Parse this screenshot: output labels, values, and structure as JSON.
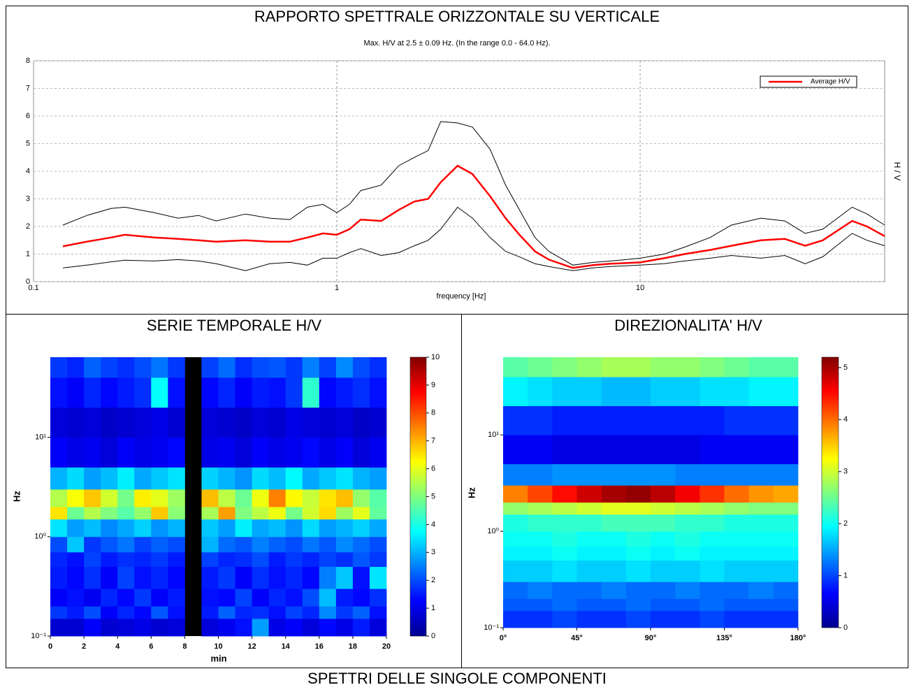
{
  "chart_data": [
    {
      "type": "line",
      "title": "RAPPORTO SPETTRALE ORIZZONTALE SU VERTICALE",
      "subtitle": "Max. H/V at 2.5 ± 0.09 Hz. (In the range 0.0 - 64.0 Hz).",
      "xlabel": "frequency [Hz]",
      "ylabel": "H / V",
      "xlog": true,
      "grid": true,
      "legend": "upper-right",
      "xlim": [
        0.1,
        64
      ],
      "xticks": [
        0.1,
        1,
        10
      ],
      "ylim": [
        0,
        8
      ],
      "yticks": [
        0,
        1,
        2,
        3,
        4,
        5,
        6,
        7,
        8
      ],
      "x": [
        0.125,
        0.15,
        0.18,
        0.2,
        0.25,
        0.3,
        0.35,
        0.4,
        0.5,
        0.6,
        0.7,
        0.8,
        0.9,
        1,
        1.1,
        1.2,
        1.4,
        1.6,
        1.8,
        2,
        2.2,
        2.5,
        2.8,
        3.2,
        3.6,
        4,
        4.5,
        5,
        6,
        7,
        8,
        10,
        12,
        14,
        17,
        20,
        25,
        30,
        35,
        40,
        50,
        56,
        64
      ],
      "series": [
        {
          "color": "#000000",
          "values": [
            2.05,
            2.4,
            2.65,
            2.7,
            2.5,
            2.3,
            2.4,
            2.2,
            2.45,
            2.3,
            2.25,
            2.7,
            2.8,
            2.5,
            2.8,
            3.3,
            3.5,
            4.2,
            4.5,
            4.75,
            5.8,
            5.75,
            5.6,
            4.8,
            3.5,
            2.6,
            1.6,
            1.1,
            0.6,
            0.7,
            0.75,
            0.85,
            1.0,
            1.25,
            1.6,
            2.05,
            2.3,
            2.2,
            1.75,
            1.9,
            2.7,
            2.45,
            2.05
          ]
        },
        {
          "color": "#000000",
          "values": [
            0.5,
            0.6,
            0.72,
            0.78,
            0.75,
            0.8,
            0.75,
            0.65,
            0.4,
            0.65,
            0.7,
            0.6,
            0.85,
            0.85,
            1.05,
            1.2,
            0.95,
            1.05,
            1.3,
            1.5,
            1.9,
            2.7,
            2.3,
            1.6,
            1.1,
            0.9,
            0.65,
            0.55,
            0.4,
            0.5,
            0.55,
            0.6,
            0.65,
            0.75,
            0.85,
            0.95,
            0.85,
            0.95,
            0.65,
            0.9,
            1.75,
            1.5,
            1.3
          ]
        },
        {
          "name": "Average H/V",
          "color": "#ff0000",
          "values": [
            1.28,
            1.45,
            1.6,
            1.7,
            1.6,
            1.55,
            1.5,
            1.45,
            1.5,
            1.45,
            1.45,
            1.6,
            1.75,
            1.7,
            1.9,
            2.25,
            2.2,
            2.6,
            2.9,
            3.0,
            3.6,
            4.2,
            3.9,
            3.1,
            2.3,
            1.7,
            1.1,
            0.8,
            0.5,
            0.6,
            0.65,
            0.7,
            0.85,
            1.0,
            1.15,
            1.3,
            1.5,
            1.55,
            1.3,
            1.5,
            2.2,
            2.0,
            1.65
          ]
        }
      ]
    },
    {
      "type": "heatmap",
      "title": "SERIE TEMPORALE H/V",
      "xlabel": "min",
      "ylabel": "Hz",
      "ylog": true,
      "xlim": [
        0,
        20
      ],
      "xticks": [
        0,
        2,
        4,
        6,
        8,
        10,
        12,
        14,
        16,
        18,
        20
      ],
      "ylim": [
        0.1,
        64
      ],
      "yticks": [
        {
          "value": 0.1,
          "label": "10⁻¹"
        },
        {
          "value": 1,
          "label": "10⁰"
        },
        {
          "value": 10,
          "label": "10¹"
        }
      ],
      "xbins": [
        0,
        1,
        2,
        3,
        4,
        5,
        6,
        7,
        8,
        9,
        10,
        11,
        12,
        13,
        14,
        15,
        16,
        17,
        18,
        19,
        20
      ],
      "ybins": [
        0.1,
        0.15,
        0.2,
        0.3,
        0.5,
        0.7,
        1,
        1.5,
        2,
        3,
        5,
        10,
        20,
        40,
        64
      ],
      "zlim": [
        0,
        10
      ],
      "zticks": [
        0,
        1,
        2,
        3,
        4,
        5,
        6,
        7,
        8,
        9,
        10
      ],
      "colormap": "jet",
      "z": [
        [
          0.8,
          0.8,
          1.2,
          0.8,
          0.9,
          1.0,
          0.8,
          0.9,
          null,
          0.9,
          1.1,
          1.4,
          2.8,
          1.0,
          1.2,
          0.9,
          1.3,
          1.0,
          1.5,
          0.9
        ],
        [
          1.8,
          1.5,
          2.0,
          1.2,
          1.6,
          1.3,
          2.1,
          1.4,
          null,
          1.5,
          2.2,
          1.6,
          1.7,
          1.4,
          1.9,
          1.6,
          2.6,
          1.8,
          2.2,
          1.4
        ],
        [
          1.2,
          1.4,
          1.1,
          1.6,
          1.3,
          1.8,
          1.2,
          1.5,
          null,
          1.4,
          1.3,
          1.9,
          1.2,
          1.6,
          1.4,
          2.0,
          3.1,
          1.5,
          1.3,
          1.7
        ],
        [
          1.5,
          1.3,
          1.7,
          1.2,
          1.9,
          1.4,
          1.6,
          1.3,
          null,
          1.5,
          1.8,
          1.2,
          1.7,
          1.4,
          1.6,
          1.3,
          2.5,
          3.2,
          1.4,
          3.5
        ],
        [
          1.6,
          1.4,
          1.9,
          1.5,
          1.7,
          1.6,
          1.8,
          1.5,
          null,
          1.9,
          1.6,
          1.7,
          2.0,
          1.5,
          1.8,
          1.6,
          1.9,
          1.7,
          2.1,
          1.8
        ],
        [
          2.0,
          3.2,
          1.8,
          2.1,
          2.4,
          1.9,
          2.2,
          2.0,
          null,
          3.0,
          2.3,
          2.1,
          2.5,
          2.2,
          2.0,
          2.4,
          2.1,
          2.6,
          2.3,
          2.0
        ],
        [
          3.5,
          2.8,
          3.1,
          2.6,
          2.9,
          3.3,
          2.7,
          3.0,
          null,
          3.2,
          2.8,
          3.6,
          2.9,
          3.1,
          2.7,
          3.4,
          2.8,
          3.0,
          3.3,
          2.9
        ],
        [
          6.5,
          4.8,
          5.5,
          5.0,
          4.6,
          5.2,
          6.8,
          5.1,
          null,
          5.4,
          7.2,
          5.0,
          5.6,
          6.1,
          4.9,
          5.8,
          6.6,
          5.3,
          6.0,
          4.7
        ],
        [
          5.5,
          6.2,
          6.8,
          5.8,
          4.9,
          6.4,
          6.0,
          5.3,
          null,
          6.9,
          5.6,
          4.8,
          6.1,
          7.5,
          6.3,
          5.7,
          6.5,
          6.9,
          5.2,
          4.6
        ],
        [
          3.0,
          3.4,
          2.8,
          3.1,
          3.6,
          2.9,
          3.2,
          3.5,
          null,
          3.3,
          3.0,
          2.7,
          3.4,
          3.1,
          3.7,
          2.9,
          3.2,
          3.5,
          3.0,
          2.8
        ],
        [
          1.2,
          1.0,
          1.1,
          0.9,
          1.2,
          1.0,
          1.1,
          1.3,
          null,
          1.0,
          1.1,
          0.9,
          1.2,
          1.0,
          1.1,
          1.3,
          1.0,
          1.2,
          0.9,
          1.1
        ],
        [
          0.9,
          0.8,
          0.9,
          0.7,
          0.8,
          0.9,
          1.0,
          0.8,
          null,
          0.9,
          0.8,
          0.7,
          0.9,
          0.8,
          1.0,
          0.9,
          0.8,
          0.9,
          0.7,
          0.8
        ],
        [
          1.4,
          1.2,
          1.6,
          1.3,
          1.5,
          1.7,
          3.8,
          1.4,
          null,
          1.3,
          1.6,
          1.2,
          1.5,
          1.4,
          1.8,
          4.2,
          1.3,
          1.5,
          1.7,
          1.4
        ],
        [
          1.8,
          1.6,
          2.2,
          1.9,
          1.7,
          2.0,
          2.4,
          1.8,
          null,
          1.9,
          2.3,
          1.7,
          2.0,
          2.1,
          1.8,
          2.5,
          1.9,
          2.6,
          2.0,
          1.7
        ]
      ]
    },
    {
      "type": "heatmap",
      "title": "DIREZIONALITA' H/V",
      "ylabel": "Hz",
      "ylog": true,
      "xlim": [
        0,
        180
      ],
      "xticks": [
        {
          "value": 0,
          "label": "0°"
        },
        {
          "value": 45,
          "label": "45°"
        },
        {
          "value": 90,
          "label": "90°"
        },
        {
          "value": 135,
          "label": "135°"
        },
        {
          "value": 180,
          "label": "180°"
        }
      ],
      "ylim": [
        0.1,
        64
      ],
      "yticks": [
        {
          "value": 0.1,
          "label": "10⁻¹"
        },
        {
          "value": 1,
          "label": "10⁰"
        },
        {
          "value": 10,
          "label": "10¹"
        }
      ],
      "xbins": [
        0,
        15,
        30,
        45,
        60,
        75,
        90,
        105,
        120,
        135,
        150,
        165,
        180
      ],
      "ybins": [
        0.1,
        0.15,
        0.2,
        0.3,
        0.5,
        0.7,
        1,
        1.5,
        2,
        3,
        5,
        10,
        20,
        40,
        64
      ],
      "zlim": [
        0,
        5.2
      ],
      "zticks": [
        0,
        1,
        2,
        3,
        4,
        5
      ],
      "colormap": "jet",
      "z": [
        [
          0.9,
          0.9,
          1.0,
          0.9,
          0.9,
          1.0,
          0.9,
          0.9,
          1.0,
          0.9,
          0.9,
          0.9
        ],
        [
          1.1,
          1.1,
          1.2,
          1.1,
          1.1,
          1.2,
          1.1,
          1.1,
          1.2,
          1.1,
          1.1,
          1.1
        ],
        [
          1.2,
          1.3,
          1.2,
          1.2,
          1.3,
          1.2,
          1.2,
          1.3,
          1.2,
          1.2,
          1.3,
          1.2
        ],
        [
          1.7,
          1.7,
          1.8,
          1.7,
          1.7,
          1.8,
          1.7,
          1.7,
          1.8,
          1.7,
          1.7,
          1.7
        ],
        [
          1.9,
          1.9,
          2.0,
          1.9,
          1.9,
          2.0,
          1.9,
          2.0,
          1.9,
          1.9,
          1.9,
          1.9
        ],
        [
          2.0,
          2.0,
          2.1,
          2.0,
          2.0,
          2.1,
          2.0,
          2.1,
          2.0,
          2.0,
          2.0,
          2.0
        ],
        [
          2.1,
          2.2,
          2.2,
          2.2,
          2.3,
          2.3,
          2.3,
          2.2,
          2.2,
          2.1,
          2.1,
          2.1
        ],
        [
          2.7,
          2.8,
          2.9,
          3.0,
          3.1,
          3.1,
          3.0,
          2.9,
          2.8,
          2.7,
          2.6,
          2.6
        ],
        [
          3.9,
          4.2,
          4.5,
          4.8,
          5.0,
          5.1,
          4.9,
          4.6,
          4.3,
          4.0,
          3.8,
          3.7
        ],
        [
          1.3,
          1.3,
          1.4,
          1.4,
          1.4,
          1.4,
          1.4,
          1.3,
          1.3,
          1.3,
          1.3,
          1.3
        ],
        [
          0.6,
          0.6,
          0.5,
          0.5,
          0.5,
          0.5,
          0.5,
          0.5,
          0.6,
          0.6,
          0.6,
          0.6
        ],
        [
          0.9,
          0.9,
          0.8,
          0.8,
          0.8,
          0.8,
          0.8,
          0.8,
          0.8,
          0.9,
          0.9,
          0.9
        ],
        [
          1.9,
          1.8,
          1.7,
          1.7,
          1.6,
          1.6,
          1.7,
          1.7,
          1.8,
          1.8,
          1.9,
          1.9
        ],
        [
          2.4,
          2.5,
          2.6,
          2.7,
          2.8,
          2.8,
          2.7,
          2.7,
          2.6,
          2.5,
          2.4,
          2.4
        ]
      ]
    }
  ],
  "caption": "SPETTRI DELLE SINGOLE COMPONENTI"
}
